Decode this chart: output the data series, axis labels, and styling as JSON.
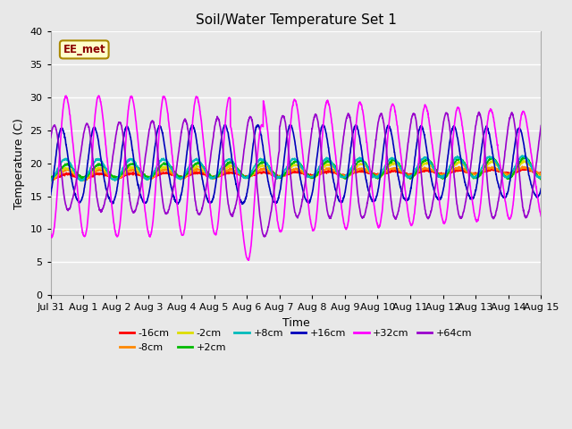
{
  "title": "Soil/Water Temperature Set 1",
  "xlabel": "Time",
  "ylabel": "Temperature (C)",
  "ylim": [
    0,
    40
  ],
  "yticks": [
    0,
    5,
    10,
    15,
    20,
    25,
    30,
    35,
    40
  ],
  "duration_days": 15,
  "annotation_text": "EE_met",
  "annotation_color": "#8B0000",
  "annotation_bg": "#FFFFCC",
  "bg_color": "#E8E8E8",
  "plot_bg_color": "#E8E8E8",
  "grid_color": "white",
  "series": [
    {
      "label": "-16cm",
      "color": "#FF0000",
      "mean": 18.0,
      "amp": 0.4,
      "phase": 0.0,
      "trend": 0.8
    },
    {
      "label": "-8cm",
      "color": "#FF8800",
      "mean": 18.2,
      "amp": 0.7,
      "phase": 0.0,
      "trend": 0.7
    },
    {
      "label": "-2cm",
      "color": "#DDDD00",
      "mean": 18.5,
      "amp": 1.0,
      "phase": 0.0,
      "trend": 0.6
    },
    {
      "label": "+2cm",
      "color": "#00BB00",
      "mean": 18.8,
      "amp": 1.4,
      "phase": 0.0,
      "trend": 0.5
    },
    {
      "label": "+8cm",
      "color": "#00BBBB",
      "mean": 19.0,
      "amp": 2.0,
      "phase": 0.05,
      "trend": 0.5
    },
    {
      "label": "+16cm",
      "color": "#0000BB",
      "mean": 19.2,
      "amp": 4.5,
      "phase": 0.15,
      "trend": 0.4
    },
    {
      "label": "+32cm",
      "color": "#FF00FF",
      "mean": 19.5,
      "amp": 8.0,
      "phase": 0.0,
      "trend": 0.3
    },
    {
      "label": "+64cm",
      "color": "#9900CC",
      "mean": 19.0,
      "amp": 6.0,
      "phase": 0.42,
      "trend": 0.3
    }
  ],
  "xtick_labels": [
    "Jul 31",
    "Aug 1",
    "Aug 2",
    "Aug 3",
    "Aug 4",
    "Aug 5",
    "Aug 6",
    "Aug 7",
    "Aug 8",
    "Aug 9",
    "Aug 10",
    "Aug 11",
    "Aug 12",
    "Aug 13",
    "Aug 14",
    "Aug 15"
  ],
  "xtick_positions": [
    0,
    1,
    2,
    3,
    4,
    5,
    6,
    7,
    8,
    9,
    10,
    11,
    12,
    13,
    14,
    15
  ],
  "figsize": [
    6.4,
    4.8
  ],
  "dpi": 100,
  "linewidth": 1.2
}
